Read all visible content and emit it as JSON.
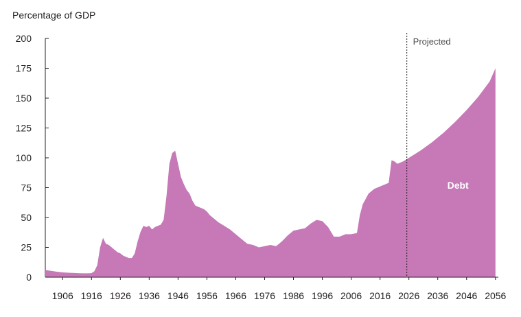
{
  "chart_data": {
    "type": "area",
    "title": "",
    "ylabel": "Percentage of GDP",
    "xlabel": "",
    "ylim": [
      0,
      200
    ],
    "xlim": [
      1900,
      2057
    ],
    "yticks": [
      0,
      25,
      50,
      75,
      100,
      125,
      150,
      175,
      200
    ],
    "xticks": [
      1906,
      1916,
      1926,
      1936,
      1946,
      1956,
      1966,
      1976,
      1986,
      1996,
      2006,
      2016,
      2026,
      2036,
      2046,
      2056
    ],
    "series": [
      {
        "name": "Debt",
        "color": "#c678b7",
        "x": [
          1900,
          1902,
          1904,
          1906,
          1908,
          1910,
          1912,
          1914,
          1916,
          1917,
          1918,
          1919,
          1920,
          1921,
          1922,
          1923,
          1924,
          1925,
          1926,
          1927,
          1928,
          1929,
          1930,
          1931,
          1932,
          1933,
          1934,
          1935,
          1936,
          1937,
          1938,
          1939,
          1940,
          1941,
          1942,
          1943,
          1944,
          1945,
          1946,
          1947,
          1948,
          1949,
          1950,
          1951,
          1952,
          1953,
          1954,
          1955,
          1956,
          1957,
          1958,
          1959,
          1960,
          1962,
          1964,
          1966,
          1968,
          1970,
          1972,
          1974,
          1976,
          1978,
          1980,
          1982,
          1984,
          1986,
          1988,
          1990,
          1992,
          1994,
          1996,
          1998,
          2000,
          2002,
          2004,
          2006,
          2008,
          2009,
          2010,
          2012,
          2014,
          2016,
          2018,
          2019,
          2020,
          2021,
          2022,
          2024,
          2026,
          2030,
          2034,
          2038,
          2042,
          2046,
          2050,
          2054,
          2056
        ],
        "values": [
          6,
          5.3,
          4.6,
          4,
          3.7,
          3.5,
          3.3,
          3.2,
          3.4,
          5,
          10,
          25,
          33,
          28,
          27,
          25,
          23,
          21,
          20,
          18,
          17,
          16,
          16,
          20,
          30,
          38,
          43,
          42,
          43,
          40,
          42,
          43,
          44,
          48,
          68,
          95,
          104,
          106,
          95,
          84,
          78,
          73,
          70,
          64,
          60,
          59,
          58,
          57,
          55,
          52,
          50,
          48,
          46,
          43,
          40,
          36,
          32,
          28,
          27,
          25,
          26,
          27,
          26,
          30,
          35,
          39,
          40,
          41,
          45,
          48,
          47,
          42,
          34,
          34,
          36,
          36,
          37,
          52,
          61,
          70,
          74,
          76,
          78,
          79,
          98,
          97,
          95,
          97,
          100,
          106,
          113,
          121,
          130,
          140,
          151,
          164,
          175
        ]
      }
    ],
    "annotations": {
      "projected_label": "Projected",
      "projected_start_x": 2026,
      "series_label": "Debt"
    }
  }
}
